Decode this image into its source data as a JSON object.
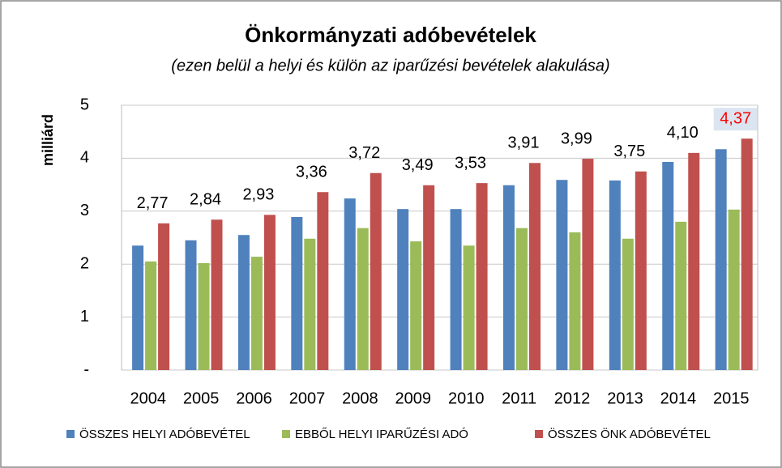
{
  "chart_data": {
    "type": "bar",
    "title": "Önkormányzati adóbevételek",
    "subtitle": "(ezen belül a helyi és külön az iparűzési bevételek alakulása)",
    "y_label": "milliárd",
    "categories": [
      "2004",
      "2005",
      "2006",
      "2007",
      "2008",
      "2009",
      "2010",
      "2011",
      "2012",
      "2013",
      "2014",
      "2015"
    ],
    "series": [
      {
        "name": "ÖSSZES HELYI ADÓBEVÉTEL",
        "color": "#4f81bd",
        "values": [
          2.35,
          2.45,
          2.55,
          2.89,
          3.24,
          3.04,
          3.04,
          3.49,
          3.59,
          3.58,
          3.93,
          4.17
        ]
      },
      {
        "name": "EBBŐL HELYI IPARŰZÉSI ADÓ",
        "color": "#9bbb59",
        "values": [
          2.05,
          2.02,
          2.14,
          2.48,
          2.68,
          2.43,
          2.35,
          2.68,
          2.6,
          2.48,
          2.8,
          3.03
        ]
      },
      {
        "name": "ÖSSZES ÖNK ADÓBEVÉTEL",
        "color": "#c0504d",
        "values": [
          2.77,
          2.84,
          2.93,
          3.36,
          3.72,
          3.49,
          3.53,
          3.91,
          3.99,
          3.75,
          4.1,
          4.37
        ],
        "value_labels": [
          "2,77",
          "2,84",
          "2,93",
          "3,36",
          "3,72",
          "3,49",
          "3,53",
          "3,91",
          "3,99",
          "3,75",
          "4,10",
          "4,37"
        ],
        "value_label_colors": [
          "#000000",
          "#000000",
          "#000000",
          "#000000",
          "#000000",
          "#000000",
          "#000000",
          "#000000",
          "#000000",
          "#000000",
          "#000000",
          "#ff0000"
        ]
      }
    ],
    "ylim": [
      0,
      5
    ],
    "yticks": [
      {
        "value": 0,
        "label": "-"
      },
      1,
      2,
      3,
      4,
      5
    ],
    "grid": true,
    "legend": "bottom"
  }
}
